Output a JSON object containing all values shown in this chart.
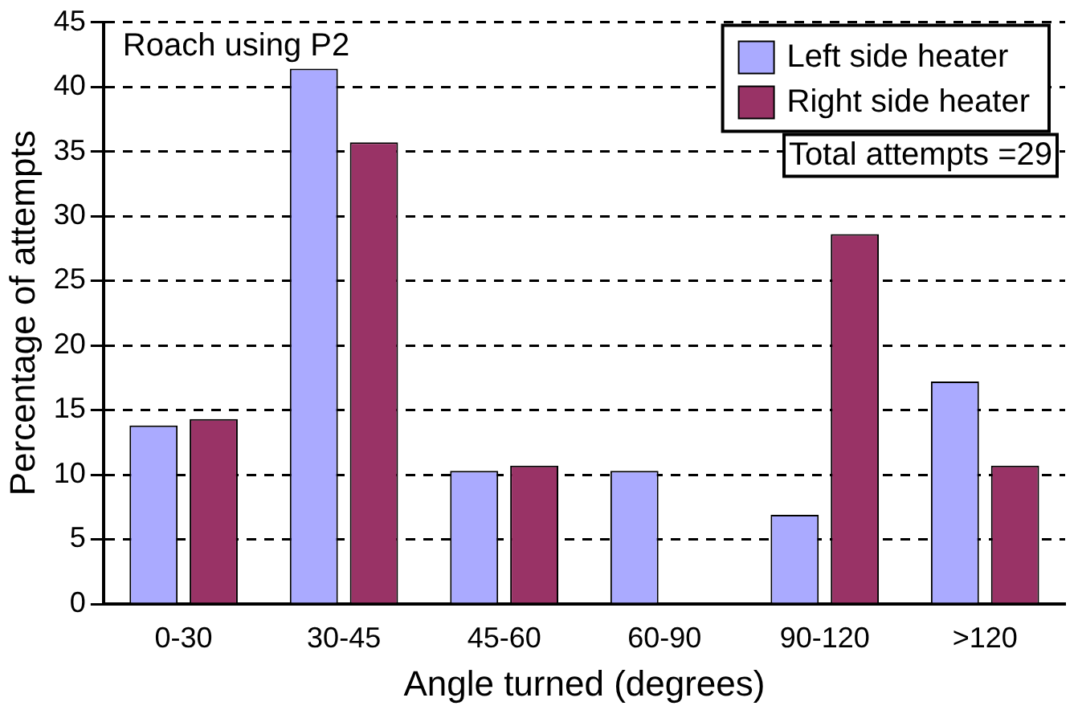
{
  "chart_data": {
    "type": "bar",
    "xlabel": "Angle turned (degrees)",
    "ylabel": "Percentage of attempts",
    "categories": [
      "0-30",
      "30-45",
      "45-60",
      "60-90",
      "90-120",
      ">120"
    ],
    "series": [
      {
        "name": "Left side heater",
        "color": "#aaaaff",
        "values": [
          13.8,
          41.4,
          10.3,
          10.3,
          6.9,
          17.2
        ]
      },
      {
        "name": "Right side heater",
        "color": "#993366",
        "values": [
          14.3,
          35.7,
          10.7,
          0,
          28.6,
          10.7
        ]
      }
    ],
    "ylim": [
      0,
      45
    ],
    "yticks": [
      0,
      5,
      10,
      15,
      20,
      25,
      30,
      35,
      40,
      45
    ],
    "grid": "y",
    "legend": "top right",
    "annotations": [
      "Roach using P2",
      "Total attempts =29"
    ]
  }
}
